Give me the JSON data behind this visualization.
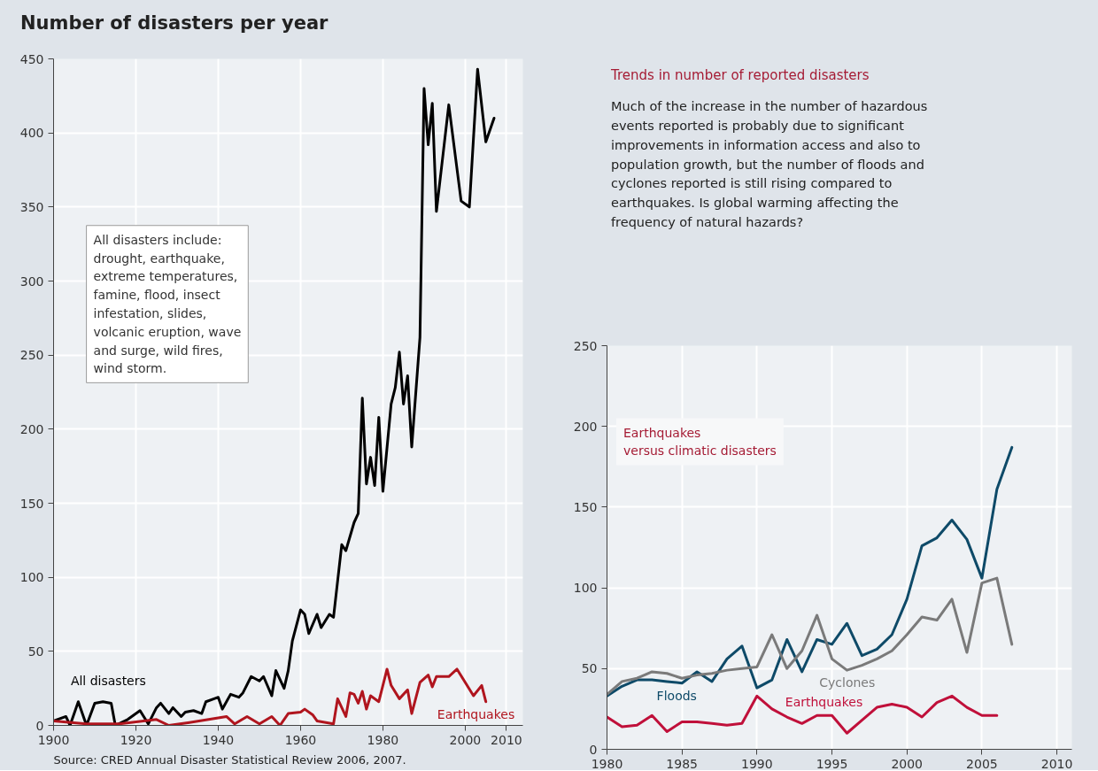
{
  "chart_data": [
    {
      "type": "line",
      "title": "Number of disasters per year",
      "xlim": [
        1900,
        2014
      ],
      "xticks": [
        1900,
        1920,
        1940,
        1960,
        1980,
        2000,
        2010
      ],
      "ylim": [
        0,
        450
      ],
      "yticks": [
        0,
        50,
        100,
        150,
        200,
        250,
        300,
        350,
        400,
        450
      ],
      "grid": true,
      "series": [
        {
          "name": "All disasters",
          "color": "#000000",
          "x": [
            1900,
            1903,
            1904,
            1906,
            1908,
            1910,
            1912,
            1914,
            1915,
            1918,
            1921,
            1923,
            1925,
            1926,
            1928,
            1929,
            1931,
            1932,
            1934,
            1936,
            1937,
            1939,
            1940,
            1941,
            1943,
            1945,
            1946,
            1948,
            1950,
            1951,
            1953,
            1954,
            1956,
            1957,
            1958,
            1960,
            1961,
            1962,
            1964,
            1965,
            1967,
            1968,
            1970,
            1971,
            1973,
            1974,
            1975,
            1976,
            1977,
            1978,
            1979,
            1980,
            1982,
            1983,
            1984,
            1985,
            1986,
            1987,
            1989,
            1990,
            1991,
            1992,
            1993,
            1996,
            1999,
            2001,
            2003,
            2005,
            2007
          ],
          "values": [
            3,
            6,
            0,
            16,
            0,
            15,
            16,
            15,
            0,
            4,
            10,
            1,
            12,
            15,
            8,
            12,
            6,
            9,
            10,
            8,
            16,
            18,
            19,
            11,
            21,
            19,
            22,
            33,
            30,
            33,
            20,
            37,
            25,
            37,
            57,
            78,
            75,
            62,
            75,
            66,
            75,
            73,
            122,
            118,
            137,
            143,
            221,
            163,
            181,
            162,
            208,
            158,
            217,
            228,
            252,
            217,
            236,
            188,
            262,
            430,
            392,
            420,
            347,
            419,
            354,
            350,
            443,
            394,
            410
          ]
        },
        {
          "name": "Earthquakes",
          "color": "#b0151e",
          "x": [
            1900,
            1908,
            1916,
            1925,
            1928,
            1933,
            1942,
            1944,
            1947,
            1950,
            1953,
            1955,
            1957,
            1960,
            1961,
            1963,
            1964,
            1968,
            1969,
            1971,
            1972,
            1973,
            1974,
            1975,
            1976,
            1977,
            1979,
            1981,
            1982,
            1984,
            1986,
            1987,
            1989,
            1991,
            1992,
            1993,
            1996,
            1998,
            2002,
            2004,
            2005
          ],
          "values": [
            3,
            1,
            1,
            4,
            0,
            2,
            6,
            1,
            6,
            1,
            6,
            0,
            8,
            9,
            11,
            7,
            3,
            1,
            18,
            6,
            22,
            21,
            15,
            23,
            11,
            20,
            16,
            38,
            27,
            18,
            24,
            8,
            29,
            34,
            26,
            33,
            33,
            38,
            20,
            27,
            16
          ]
        }
      ],
      "annotations": [
        "All disasters include:\ndrought, earthquake,\nextreme temperatures,\nfamine, flood, insect\ninfestation, slides,\nvolcanic eruption, wave\nand surge, wild fires,\nwind storm.",
        "Source: CRED Annual Disaster Statistical Review 2006, 2007."
      ]
    },
    {
      "type": "line",
      "title": "Trends in number of reported disasters",
      "subtitle": "Much of the increase in the number of hazardous\nevents reported is probably due to significant\nimprovements in information access and also to\npopulation growth, but the number of floods and\ncyclones reported is still rising compared to\nearthquakes. Is global warming affecting the\nfrequency of natural hazards?",
      "xlim": [
        1980,
        2011
      ],
      "xticks": [
        1980,
        1985,
        1990,
        1995,
        2000,
        2005,
        2010
      ],
      "ylim": [
        0,
        250
      ],
      "yticks": [
        0,
        50,
        100,
        150,
        200,
        250
      ],
      "grid": true,
      "series": [
        {
          "name": "Floods",
          "color": "#0e4a68",
          "x": [
            1980,
            1981,
            1982,
            1983,
            1984,
            1985,
            1986,
            1987,
            1988,
            1989,
            1990,
            1991,
            1992,
            1993,
            1994,
            1995,
            1996,
            1997,
            1998,
            1999,
            2000,
            2001,
            2002,
            2003,
            2004,
            2005,
            2006,
            2007
          ],
          "values": [
            33,
            39,
            43,
            43,
            42,
            41,
            48,
            42,
            56,
            64,
            38,
            43,
            68,
            48,
            68,
            65,
            78,
            58,
            62,
            71,
            93,
            126,
            131,
            142,
            130,
            106,
            161,
            187
          ]
        },
        {
          "name": "Cyclones",
          "color": "#7a7a7a",
          "x": [
            1980,
            1981,
            1982,
            1983,
            1984,
            1985,
            1986,
            1987,
            1988,
            1989,
            1990,
            1991,
            1992,
            1993,
            1994,
            1995,
            1996,
            1997,
            1998,
            1999,
            2000,
            2001,
            2002,
            2003,
            2004,
            2005,
            2006,
            2007
          ],
          "values": [
            34,
            42,
            44,
            48,
            47,
            44,
            46,
            47,
            49,
            50,
            51,
            71,
            50,
            61,
            83,
            56,
            49,
            52,
            56,
            61,
            71,
            82,
            80,
            93,
            60,
            103,
            106,
            65
          ]
        },
        {
          "name": "Earthquakes",
          "color": "#c0103a",
          "x": [
            1980,
            1981,
            1982,
            1983,
            1984,
            1985,
            1986,
            1987,
            1988,
            1989,
            1990,
            1991,
            1992,
            1993,
            1994,
            1995,
            1996,
            1997,
            1998,
            1999,
            2000,
            2001,
            2002,
            2003,
            2004,
            2005,
            2006
          ],
          "values": [
            20,
            14,
            15,
            21,
            11,
            17,
            17,
            16,
            15,
            16,
            33,
            25,
            20,
            16,
            21,
            21,
            10,
            18,
            26,
            28,
            26,
            20,
            29,
            33,
            26,
            21,
            21
          ]
        }
      ],
      "annotations": [
        "Earthquakes\nversus climatic disasters"
      ]
    }
  ]
}
